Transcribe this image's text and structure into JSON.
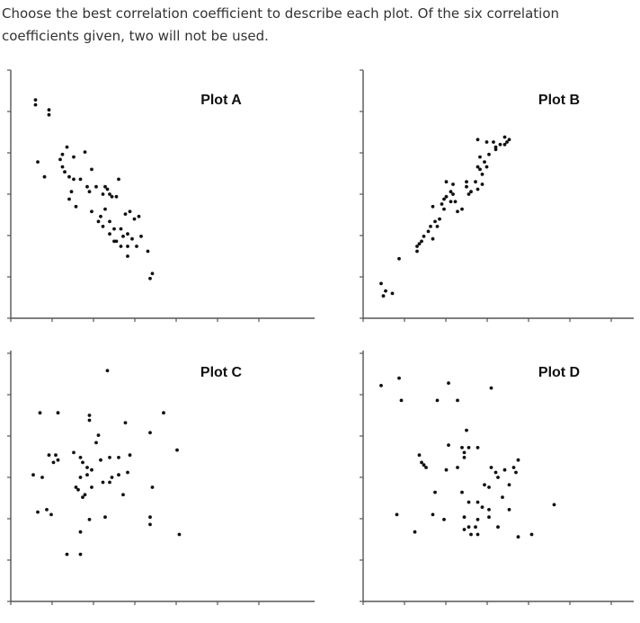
{
  "question": {
    "text": "Choose the best correlation coefficient to describe each plot. Of the six correlation coefficients given, two will not be used."
  },
  "chart_data": [
    {
      "type": "scatter",
      "title": "Plot A",
      "xlim": [
        0,
        10
      ],
      "ylim": [
        0,
        10
      ],
      "points": [
        [
          1.1,
          8.8
        ],
        [
          1.1,
          8.6
        ],
        [
          1.7,
          8.4
        ],
        [
          1.7,
          8.2
        ],
        [
          1.2,
          6.3
        ],
        [
          1.5,
          5.7
        ],
        [
          2.5,
          6.9
        ],
        [
          2.3,
          6.6
        ],
        [
          3.3,
          6.7
        ],
        [
          2.8,
          6.5
        ],
        [
          2.2,
          6.4
        ],
        [
          2.3,
          6.1
        ],
        [
          2.4,
          5.9
        ],
        [
          2.6,
          5.7
        ],
        [
          3.6,
          6.0
        ],
        [
          3.1,
          5.6
        ],
        [
          3.8,
          5.3
        ],
        [
          4.2,
          5.3
        ],
        [
          4.3,
          5.2
        ],
        [
          4.4,
          5.0
        ],
        [
          4.1,
          5.0
        ],
        [
          2.7,
          5.1
        ],
        [
          2.8,
          5.6
        ],
        [
          3.4,
          5.3
        ],
        [
          3.5,
          5.1
        ],
        [
          2.6,
          4.8
        ],
        [
          2.9,
          4.5
        ],
        [
          3.6,
          4.3
        ],
        [
          4.0,
          4.1
        ],
        [
          4.2,
          4.4
        ],
        [
          4.5,
          4.9
        ],
        [
          4.8,
          5.6
        ],
        [
          4.7,
          4.9
        ],
        [
          5.1,
          4.2
        ],
        [
          5.3,
          4.3
        ],
        [
          5.5,
          4.0
        ],
        [
          5.7,
          4.1
        ],
        [
          4.1,
          3.7
        ],
        [
          4.4,
          3.4
        ],
        [
          4.9,
          3.6
        ],
        [
          5.0,
          3.3
        ],
        [
          5.2,
          3.4
        ],
        [
          5.4,
          3.2
        ],
        [
          5.8,
          3.3
        ],
        [
          3.9,
          3.9
        ],
        [
          4.6,
          3.6
        ],
        [
          4.4,
          3.9
        ],
        [
          4.7,
          3.1
        ],
        [
          5.2,
          2.9
        ],
        [
          4.9,
          2.9
        ],
        [
          4.6,
          3.1
        ],
        [
          5.6,
          2.9
        ],
        [
          6.1,
          2.7
        ],
        [
          5.2,
          2.5
        ],
        [
          6.3,
          1.8
        ],
        [
          6.2,
          1.6
        ]
      ]
    },
    {
      "type": "scatter",
      "title": "Plot B",
      "xlim": [
        0,
        10
      ],
      "ylim": [
        0,
        10
      ],
      "points": [
        [
          0.8,
          1.4
        ],
        [
          1.0,
          1.1
        ],
        [
          0.9,
          0.9
        ],
        [
          1.3,
          1.0
        ],
        [
          1.6,
          2.4
        ],
        [
          2.4,
          2.7
        ],
        [
          2.5,
          3.0
        ],
        [
          2.7,
          3.3
        ],
        [
          2.6,
          3.1
        ],
        [
          2.4,
          2.9
        ],
        [
          3.1,
          3.2
        ],
        [
          2.9,
          3.5
        ],
        [
          3.0,
          3.7
        ],
        [
          3.3,
          3.7
        ],
        [
          3.2,
          3.9
        ],
        [
          3.4,
          4.0
        ],
        [
          3.6,
          4.4
        ],
        [
          3.5,
          4.6
        ],
        [
          3.1,
          4.5
        ],
        [
          3.7,
          4.9
        ],
        [
          3.9,
          4.7
        ],
        [
          4.0,
          5.0
        ],
        [
          4.1,
          4.7
        ],
        [
          4.6,
          5.5
        ],
        [
          4.6,
          5.3
        ],
        [
          4.0,
          5.4
        ],
        [
          3.9,
          5.1
        ],
        [
          3.7,
          5.5
        ],
        [
          3.6,
          4.8
        ],
        [
          4.2,
          4.3
        ],
        [
          4.4,
          4.4
        ],
        [
          4.8,
          5.1
        ],
        [
          5.1,
          5.2
        ],
        [
          5.0,
          5.5
        ],
        [
          5.3,
          5.8
        ],
        [
          5.2,
          6.0
        ],
        [
          5.1,
          6.1
        ],
        [
          5.4,
          6.3
        ],
        [
          5.2,
          6.5
        ],
        [
          5.5,
          6.1
        ],
        [
          5.3,
          5.4
        ],
        [
          4.7,
          5.0
        ],
        [
          5.6,
          6.6
        ],
        [
          5.9,
          6.8
        ],
        [
          6.1,
          7.0
        ],
        [
          5.5,
          7.1
        ],
        [
          5.8,
          7.1
        ],
        [
          5.9,
          6.9
        ],
        [
          6.3,
          7.0
        ],
        [
          6.4,
          7.1
        ],
        [
          6.5,
          7.2
        ],
        [
          6.3,
          7.3
        ],
        [
          5.1,
          7.2
        ]
      ]
    },
    {
      "type": "scatter",
      "title": "Plot C",
      "xlim": [
        0,
        10
      ],
      "ylim": [
        0,
        10
      ],
      "points": [
        [
          4.3,
          9.3
        ],
        [
          1.3,
          7.6
        ],
        [
          2.1,
          7.6
        ],
        [
          3.5,
          7.5
        ],
        [
          3.5,
          7.3
        ],
        [
          5.1,
          7.2
        ],
        [
          6.8,
          7.6
        ],
        [
          6.2,
          6.8
        ],
        [
          3.9,
          6.7
        ],
        [
          3.8,
          6.4
        ],
        [
          7.4,
          6.1
        ],
        [
          1.7,
          5.9
        ],
        [
          2.0,
          5.9
        ],
        [
          2.1,
          5.7
        ],
        [
          1.9,
          5.6
        ],
        [
          2.8,
          6.0
        ],
        [
          3.1,
          5.8
        ],
        [
          3.2,
          5.6
        ],
        [
          3.4,
          5.4
        ],
        [
          3.6,
          5.3
        ],
        [
          3.4,
          5.1
        ],
        [
          3.1,
          5.0
        ],
        [
          4.0,
          5.7
        ],
        [
          4.4,
          5.8
        ],
        [
          4.8,
          5.8
        ],
        [
          5.3,
          5.9
        ],
        [
          5.2,
          5.2
        ],
        [
          4.8,
          5.1
        ],
        [
          4.5,
          5.0
        ],
        [
          4.4,
          4.8
        ],
        [
          4.1,
          4.8
        ],
        [
          3.6,
          4.6
        ],
        [
          1.0,
          5.1
        ],
        [
          1.4,
          5.0
        ],
        [
          2.9,
          4.6
        ],
        [
          3.0,
          4.5
        ],
        [
          3.3,
          4.3
        ],
        [
          3.2,
          4.2
        ],
        [
          5.0,
          4.3
        ],
        [
          6.3,
          4.6
        ],
        [
          1.2,
          3.6
        ],
        [
          1.6,
          3.7
        ],
        [
          1.8,
          3.5
        ],
        [
          3.5,
          3.3
        ],
        [
          4.2,
          3.4
        ],
        [
          6.2,
          3.4
        ],
        [
          6.2,
          3.1
        ],
        [
          3.1,
          2.8
        ],
        [
          7.5,
          2.7
        ],
        [
          2.5,
          1.9
        ],
        [
          3.1,
          1.9
        ]
      ]
    },
    {
      "type": "scatter",
      "title": "Plot D",
      "xlim": [
        0,
        10
      ],
      "ylim": [
        0,
        10
      ],
      "points": [
        [
          0.8,
          8.7
        ],
        [
          1.6,
          9.0
        ],
        [
          3.8,
          8.8
        ],
        [
          5.7,
          8.6
        ],
        [
          1.7,
          8.1
        ],
        [
          3.3,
          8.1
        ],
        [
          4.2,
          8.1
        ],
        [
          4.6,
          6.9
        ],
        [
          3.8,
          6.3
        ],
        [
          4.4,
          6.2
        ],
        [
          4.5,
          6.0
        ],
        [
          4.7,
          6.2
        ],
        [
          5.1,
          6.2
        ],
        [
          4.5,
          5.8
        ],
        [
          2.5,
          5.9
        ],
        [
          2.6,
          5.6
        ],
        [
          2.7,
          5.5
        ],
        [
          2.8,
          5.4
        ],
        [
          3.7,
          5.3
        ],
        [
          4.2,
          5.4
        ],
        [
          5.7,
          5.4
        ],
        [
          5.9,
          5.2
        ],
        [
          6.0,
          5.0
        ],
        [
          6.3,
          5.3
        ],
        [
          6.8,
          5.2
        ],
        [
          6.9,
          5.7
        ],
        [
          6.7,
          5.4
        ],
        [
          5.4,
          4.7
        ],
        [
          5.6,
          4.6
        ],
        [
          6.5,
          4.7
        ],
        [
          3.2,
          4.4
        ],
        [
          4.4,
          4.4
        ],
        [
          6.2,
          4.2
        ],
        [
          4.7,
          4.0
        ],
        [
          5.1,
          4.0
        ],
        [
          5.3,
          3.8
        ],
        [
          5.6,
          3.7
        ],
        [
          6.5,
          3.7
        ],
        [
          8.5,
          3.9
        ],
        [
          1.5,
          3.5
        ],
        [
          3.1,
          3.5
        ],
        [
          3.6,
          3.3
        ],
        [
          4.5,
          3.4
        ],
        [
          5.1,
          3.3
        ],
        [
          5.6,
          3.4
        ],
        [
          4.7,
          3.0
        ],
        [
          5.0,
          3.0
        ],
        [
          2.3,
          2.8
        ],
        [
          4.5,
          2.9
        ],
        [
          4.8,
          2.7
        ],
        [
          5.1,
          2.7
        ],
        [
          6.0,
          3.0
        ],
        [
          6.9,
          2.6
        ],
        [
          7.5,
          2.7
        ]
      ]
    }
  ]
}
